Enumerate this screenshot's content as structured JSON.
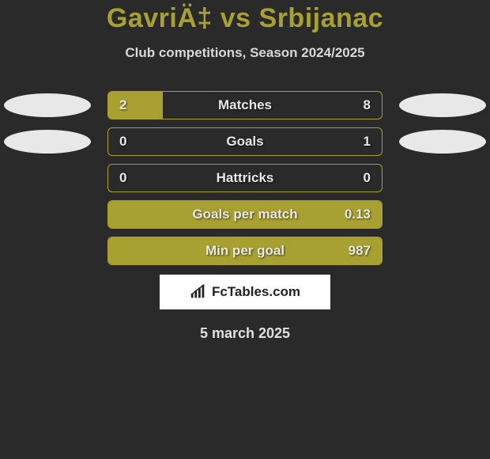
{
  "title": "GavriÄ‡ vs Srbijanac",
  "subtitle": "Club competitions, Season 2024/2025",
  "date": "5 march 2025",
  "logo_text": "FcTables.com",
  "background_color": "#2a2a2a",
  "accent_color": "#a8a030",
  "text_color": "#e8e8e8",
  "ellipse_colors": {
    "row0_left": "#e8e8e8",
    "row0_right": "#e8e8e8",
    "row1_left": "#e8e8e8",
    "row1_right": "#e8e8e8"
  },
  "stats": [
    {
      "label": "Matches",
      "left_val": "2",
      "right_val": "8",
      "left_pct": 20,
      "right_pct": 0,
      "show_ellipse": true
    },
    {
      "label": "Goals",
      "left_val": "0",
      "right_val": "1",
      "left_pct": 0,
      "right_pct": 0,
      "show_ellipse": true
    },
    {
      "label": "Hattricks",
      "left_val": "0",
      "right_val": "0",
      "left_pct": 0,
      "right_pct": 0,
      "show_ellipse": false
    },
    {
      "label": "Goals per match",
      "left_val": "",
      "right_val": "0.13",
      "left_pct": 100,
      "right_pct": 0,
      "show_ellipse": false
    },
    {
      "label": "Min per goal",
      "left_val": "",
      "right_val": "987",
      "left_pct": 100,
      "right_pct": 0,
      "show_ellipse": false
    }
  ]
}
